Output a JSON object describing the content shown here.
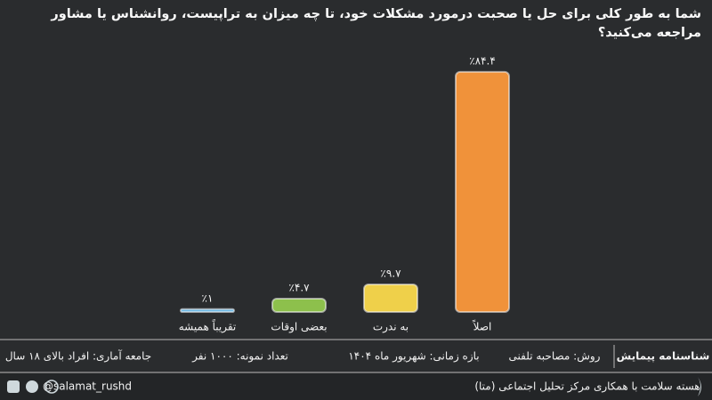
{
  "chart_data": {
    "type": "bar",
    "title": "شما به طور کلی برای حل یا صحبت درمورد مشکلات خود، تا چه میزان به تراپیست، روانشناس یا مشاور مراجعه می‌کنید؟",
    "categories": [
      "اصلاً",
      "به ندرت",
      "بعضی اوقات",
      "تقریباً همیشه"
    ],
    "values": [
      84.4,
      9.7,
      4.7,
      1
    ],
    "value_labels": [
      "٪۸۴.۴",
      "٪۹.۷",
      "٪۴.۷",
      "٪۱"
    ],
    "colors": [
      "#f0923a",
      "#efd04a",
      "#8dc04c",
      "#6cb6e2"
    ]
  },
  "footer": {
    "heading": "شناسنامه پیمایش",
    "items": [
      "روش: مصاحبه تلفنی",
      "بازه زمانی: شهریور ماه ۱۴۰۴",
      "تعداد نمونه: ۱۰۰۰ نفر",
      "جامعه آماری: افراد بالای ۱۸ سال"
    ]
  },
  "credits": {
    "organization": "هسته سلامت با همکاری مرکز تحلیل اجتماعی (متا)",
    "handle": "@salamat_rushd"
  }
}
